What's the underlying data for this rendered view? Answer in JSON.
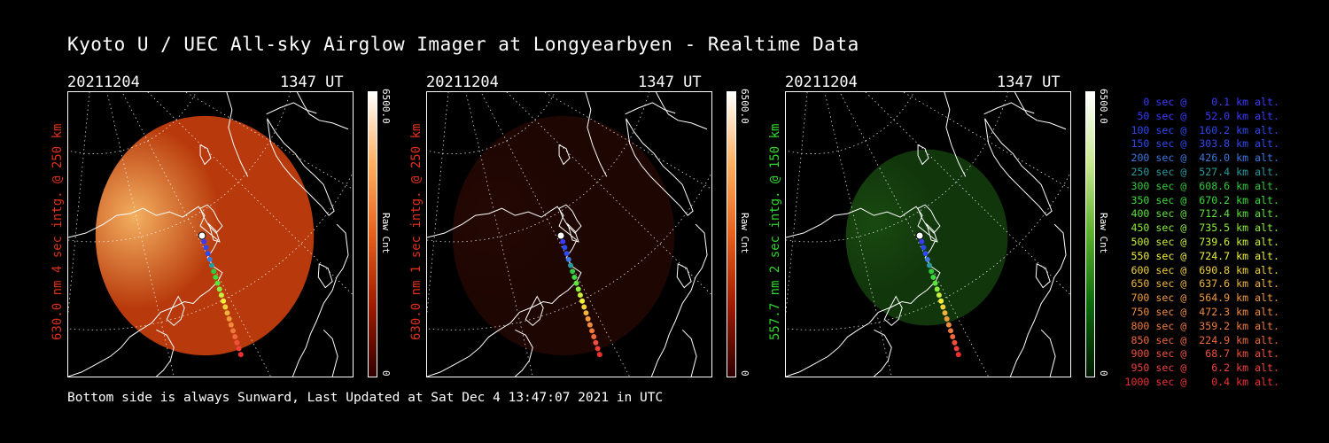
{
  "title": "Kyoto U / UEC All-sky Airglow Imager at Longyearbyen - Realtime Data",
  "footer": "Bottom side is always Sunward, Last Updated at Sat Dec  4 13:47:07 2021 in UTC",
  "panels": [
    {
      "date": "20211204",
      "time": "1347 UT",
      "ylabel": "630.0 nm 4 sec intg. @ 250 km",
      "label_color": "#e03018",
      "cbar_max": "6500.0",
      "cbar_min": "0",
      "cbar_label": "Raw Cnt",
      "cbar_colors": [
        "#300000",
        "#a01a00",
        "#e8601a",
        "#ffb060",
        "#ffffff"
      ],
      "glow": {
        "fill": "#b83a0c",
        "bright": "#f4b060",
        "intensity": 1.0
      }
    },
    {
      "date": "20211204",
      "time": "1347 UT",
      "ylabel": "630.0 nm 1 sec intg. @ 250 km",
      "label_color": "#e03018",
      "cbar_max": "6500.0",
      "cbar_min": "0",
      "cbar_label": "Raw Cnt",
      "cbar_colors": [
        "#300000",
        "#a01a00",
        "#e8601a",
        "#ffb060",
        "#ffffff"
      ],
      "glow": {
        "fill": "#4a0f06",
        "bright": "#5a1408",
        "intensity": 0.4
      }
    },
    {
      "date": "20211204",
      "time": "1347 UT",
      "ylabel": "557.7 nm 2 sec intg. @ 150 km",
      "label_color": "#2cd82c",
      "cbar_max": "6500.0",
      "cbar_min": "0",
      "cbar_label": "Raw Cnt",
      "cbar_colors": [
        "#001800",
        "#0a6a0a",
        "#5ab02a",
        "#c8e890",
        "#ffffff"
      ],
      "glow": {
        "fill": "#1c5a14",
        "bright": "#2a7a1a",
        "intensity": 0.6
      }
    }
  ],
  "legend": [
    {
      "text": "   0 sec @    0.1 km alt.",
      "color": "#3a3aff"
    },
    {
      "text": "  50 sec @   52.0 km alt.",
      "color": "#3a3aff"
    },
    {
      "text": " 100 sec @  160.2 km alt.",
      "color": "#2d49f0"
    },
    {
      "text": " 150 sec @  303.8 km alt.",
      "color": "#2d49f0"
    },
    {
      "text": " 200 sec @  426.0 km alt.",
      "color": "#3c78e0"
    },
    {
      "text": " 250 sec @  527.4 km alt.",
      "color": "#2a9aa0"
    },
    {
      "text": " 300 sec @  608.6 km alt.",
      "color": "#34c83c"
    },
    {
      "text": " 350 sec @  670.2 km alt.",
      "color": "#3cdc3c"
    },
    {
      "text": " 400 sec @  712.4 km alt.",
      "color": "#5ee23c"
    },
    {
      "text": " 450 sec @  735.5 km alt.",
      "color": "#8aee3c"
    },
    {
      "text": " 500 sec @  739.6 km alt.",
      "color": "#c8f03c"
    },
    {
      "text": " 550 sec @  724.7 km alt.",
      "color": "#f0f03c"
    },
    {
      "text": " 600 sec @  690.8 km alt.",
      "color": "#f0d23c"
    },
    {
      "text": " 650 sec @  637.6 km alt.",
      "color": "#f0b43c"
    },
    {
      "text": " 700 sec @  564.9 km alt.",
      "color": "#f09a3c"
    },
    {
      "text": " 750 sec @  472.3 km alt.",
      "color": "#f08a3c"
    },
    {
      "text": " 800 sec @  359.2 km alt.",
      "color": "#f07a3c"
    },
    {
      "text": " 850 sec @  224.9 km alt.",
      "color": "#f0683c"
    },
    {
      "text": " 900 sec @   68.7 km alt.",
      "color": "#f0503c"
    },
    {
      "text": " 950 sec @    6.2 km alt.",
      "color": "#f0403c"
    },
    {
      "text": "1000 sec @    0.4 km alt.",
      "color": "#f03030"
    }
  ],
  "track_colors": [
    "#ffffff",
    "#3a3aff",
    "#2d49f0",
    "#2d49f0",
    "#3c78e0",
    "#2a9aa0",
    "#34c83c",
    "#3cdc3c",
    "#5ee23c",
    "#8aee3c",
    "#c8f03c",
    "#f0f03c",
    "#f0d23c",
    "#f0b43c",
    "#f09a3c",
    "#f08a3c",
    "#f07a3c",
    "#f0683c",
    "#f0503c",
    "#f0403c",
    "#f03030"
  ]
}
